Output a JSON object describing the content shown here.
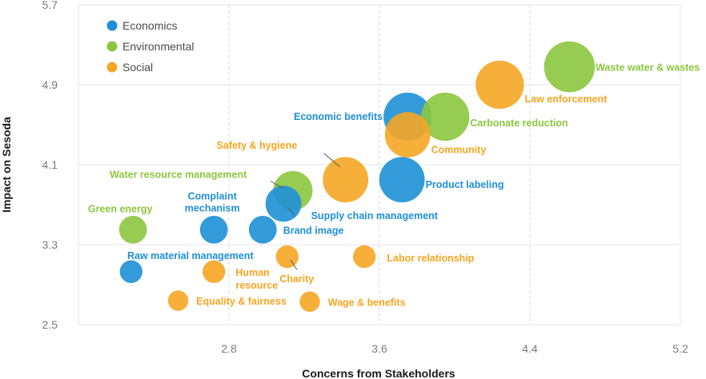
{
  "colors": {
    "Economics": "#1e90d6",
    "Environmental": "#8cc63f",
    "Social": "#f5a623"
  },
  "chart_data": {
    "type": "scatter",
    "title": "",
    "xlabel": "Concerns from Stakeholders",
    "ylabel": "Impact on Sesoda",
    "xlim": [
      2.0,
      5.2
    ],
    "ylim": [
      2.5,
      5.7
    ],
    "xticks": [
      "2.8",
      "3.6",
      "4.4",
      "5.2"
    ],
    "yticks": [
      "2.5",
      "3.3",
      "4.1",
      "4.9",
      "5.7"
    ],
    "grid": "dashed-vertical, solid-horizontal",
    "legend_position": "top-left",
    "legend": [
      "Economics",
      "Environmental",
      "Social"
    ],
    "points": [
      {
        "label": "Waste water & wastes",
        "group": "Environmental",
        "x": 4.61,
        "y": 5.08,
        "size": 5
      },
      {
        "label": "Law enforcement",
        "group": "Social",
        "x": 4.24,
        "y": 4.9,
        "size": 4.5
      },
      {
        "label": "Economic benefits",
        "group": "Economics",
        "x": 3.75,
        "y": 4.58,
        "size": 4.5
      },
      {
        "label": "Carbonate reduction",
        "group": "Environmental",
        "x": 3.95,
        "y": 4.58,
        "size": 4.5
      },
      {
        "label": "Community",
        "group": "Social",
        "x": 3.75,
        "y": 4.4,
        "size": 4
      },
      {
        "label": "Safety & hygiene",
        "group": "Social",
        "x": 3.42,
        "y": 3.95,
        "size": 4
      },
      {
        "label": "Product labeling",
        "group": "Economics",
        "x": 3.72,
        "y": 3.95,
        "size": 4
      },
      {
        "label": "Water resource management",
        "group": "Environmental",
        "x": 3.14,
        "y": 3.84,
        "size": 3
      },
      {
        "label": "Supply chain management",
        "group": "Economics",
        "x": 3.09,
        "y": 3.71,
        "size": 2.5
      },
      {
        "label": "Complaint mechanism",
        "group": "Economics",
        "x": 2.72,
        "y": 3.45,
        "size": 1.5
      },
      {
        "label": "Brand image",
        "group": "Economics",
        "x": 2.98,
        "y": 3.45,
        "size": 1.5
      },
      {
        "label": "Green energy",
        "group": "Environmental",
        "x": 2.29,
        "y": 3.45,
        "size": 1.5
      },
      {
        "label": "Raw material management",
        "group": "Economics",
        "x": 2.28,
        "y": 3.03,
        "size": 1
      },
      {
        "label": "Human resource",
        "group": "Social",
        "x": 2.72,
        "y": 3.03,
        "size": 1
      },
      {
        "label": "Charity",
        "group": "Social",
        "x": 3.11,
        "y": 3.18,
        "size": 1
      },
      {
        "label": "Labor relationship",
        "group": "Social",
        "x": 3.52,
        "y": 3.18,
        "size": 1
      },
      {
        "label": "Equality & fairness",
        "group": "Social",
        "x": 2.53,
        "y": 2.74,
        "size": 0.8
      },
      {
        "label": "Wage & benefits",
        "group": "Social",
        "x": 3.23,
        "y": 2.73,
        "size": 0.8
      }
    ]
  }
}
